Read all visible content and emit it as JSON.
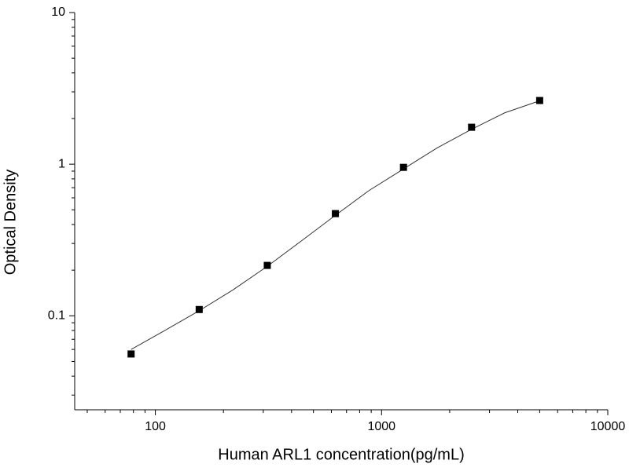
{
  "chart_data": {
    "type": "scatter",
    "x_label": "Human ARL1 concentration(pg/mL)",
    "y_label": "Optical Density",
    "x_log": true,
    "y_log": true,
    "xlim": [
      44,
      10000
    ],
    "ylim": [
      0.024,
      10
    ],
    "xticks": [
      100,
      1000,
      10000
    ],
    "yticks": [
      0.1,
      1,
      10
    ],
    "xminorticks": [
      50,
      60,
      70,
      80,
      90,
      200,
      300,
      400,
      500,
      600,
      700,
      800,
      900,
      2000,
      3000,
      4000,
      5000,
      6000,
      7000,
      8000,
      9000
    ],
    "yminorticks": [
      0.03,
      0.04,
      0.05,
      0.06,
      0.07,
      0.08,
      0.09,
      0.2,
      0.3,
      0.4,
      0.5,
      0.6,
      0.7,
      0.8,
      0.9,
      2,
      3,
      4,
      5,
      6,
      7,
      8,
      9
    ],
    "x": [
      78.125,
      156.25,
      312.5,
      625,
      1250,
      2500,
      5000
    ],
    "values": [
      0.056,
      0.11,
      0.215,
      0.472,
      0.953,
      1.752,
      2.63
    ],
    "color": "#000000",
    "fit": {
      "x": [
        78.125,
        110,
        156.25,
        220,
        312.5,
        440,
        625,
        880,
        1250,
        1760,
        2500,
        3500,
        5000
      ],
      "values": [
        0.06,
        0.08,
        0.108,
        0.148,
        0.212,
        0.31,
        0.46,
        0.67,
        0.93,
        1.28,
        1.7,
        2.18,
        2.62
      ],
      "color": "#333333"
    }
  }
}
